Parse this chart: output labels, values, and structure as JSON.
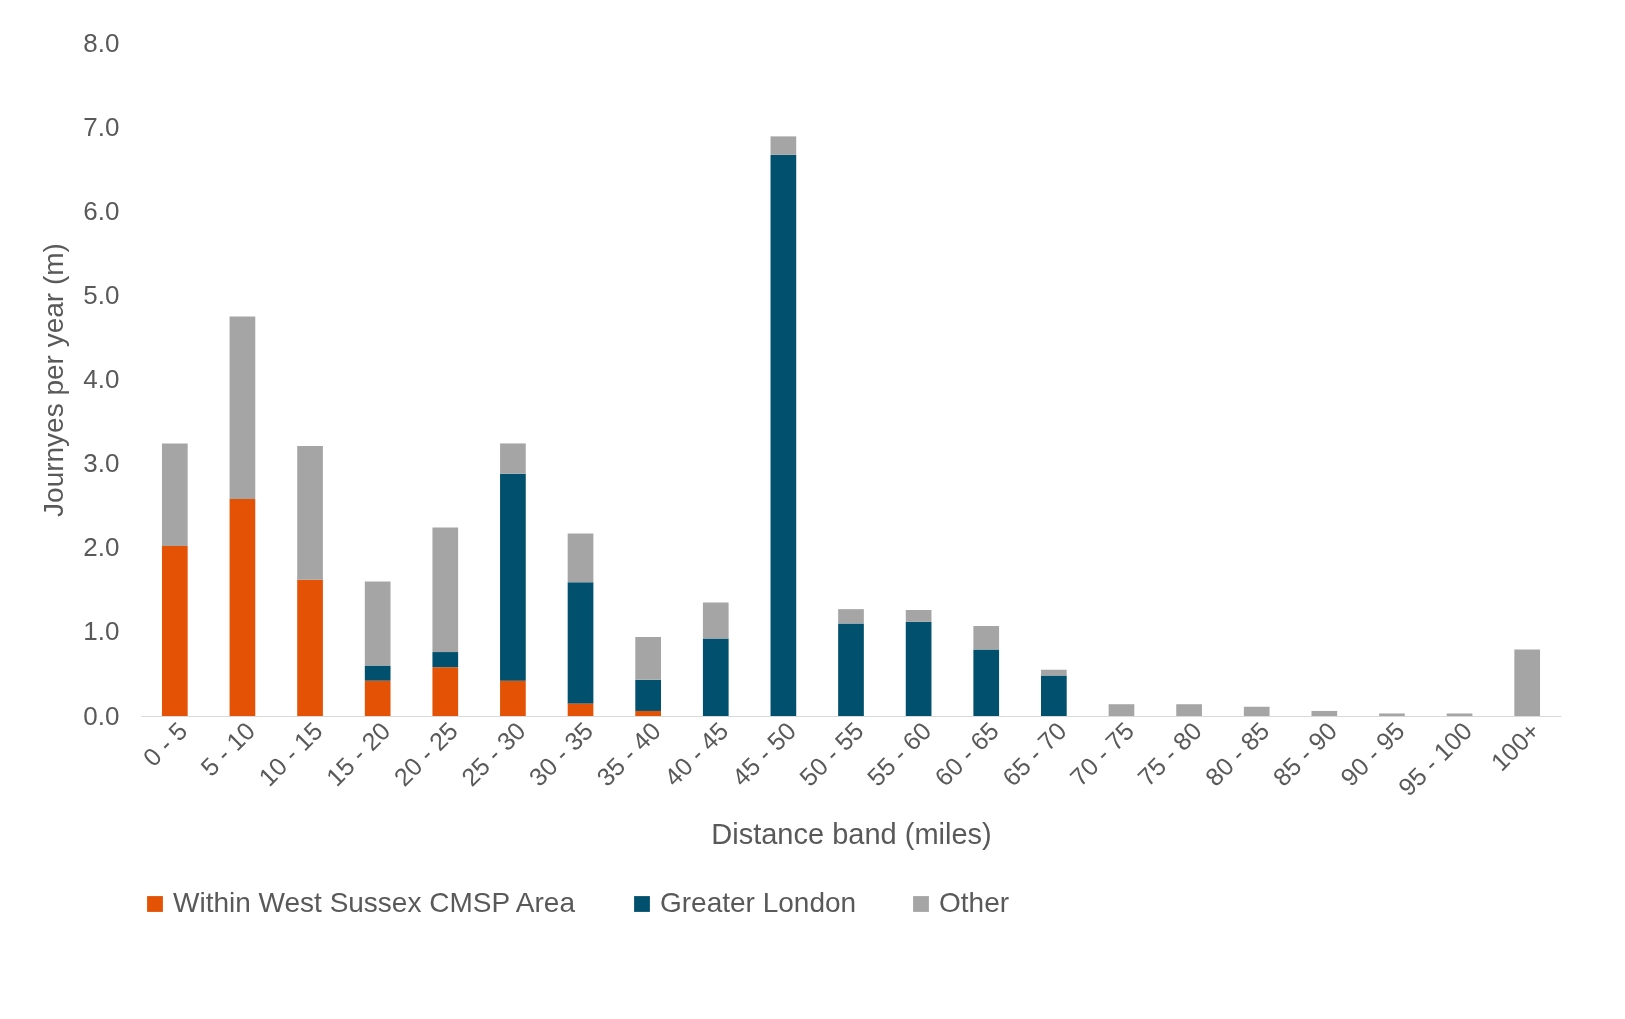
{
  "chart_data": {
    "type": "bar",
    "stacked": true,
    "xlabel": "Distance band (miles)",
    "ylabel": "Journyes per year (m)",
    "categories": [
      "0 - 5",
      "5 - 10",
      "10 - 15",
      "15 - 20",
      "20 - 25",
      "25 - 30",
      "30 - 35",
      "35 - 40",
      "40 - 45",
      "45 - 50",
      "50 - 55",
      "55 - 60",
      "60 - 65",
      "65 - 70",
      "70 - 75",
      "75 - 80",
      "80 - 85",
      "85 - 90",
      "90 - 95",
      "95 - 100",
      "100+"
    ],
    "series": [
      {
        "name": "Within West Sussex CMSP Area",
        "color": "#e35205",
        "values": [
          2.02,
          2.58,
          1.62,
          0.42,
          0.58,
          0.42,
          0.15,
          0.06,
          0,
          0,
          0,
          0,
          0,
          0,
          0,
          0,
          0,
          0,
          0,
          0,
          0
        ]
      },
      {
        "name": "Greater London",
        "color": "#00506e",
        "values": [
          0,
          0,
          0,
          0.18,
          0.18,
          2.46,
          1.44,
          0.37,
          0.92,
          6.67,
          1.1,
          1.12,
          0.79,
          0.48,
          0,
          0,
          0,
          0,
          0,
          0,
          0
        ]
      },
      {
        "name": "Other",
        "color": "#a5a5a5",
        "values": [
          1.22,
          2.17,
          1.59,
          1.0,
          1.48,
          0.36,
          0.58,
          0.51,
          0.43,
          0.22,
          0.17,
          0.14,
          0.28,
          0.07,
          0.14,
          0.14,
          0.11,
          0.06,
          0.03,
          0.03,
          0.79
        ]
      }
    ],
    "ylim": [
      0,
      8
    ],
    "yticks": [
      {
        "value": 0,
        "label": "0.0"
      },
      {
        "value": 1,
        "label": "1.0"
      },
      {
        "value": 2,
        "label": "2.0"
      },
      {
        "value": 3,
        "label": "3.0"
      },
      {
        "value": 4,
        "label": "4.0"
      },
      {
        "value": 5,
        "label": "5.0"
      },
      {
        "value": 6,
        "label": "6.0"
      },
      {
        "value": 7,
        "label": "7.0"
      },
      {
        "value": 8,
        "label": "8.0"
      }
    ],
    "grid": false,
    "legend": "bottom"
  }
}
